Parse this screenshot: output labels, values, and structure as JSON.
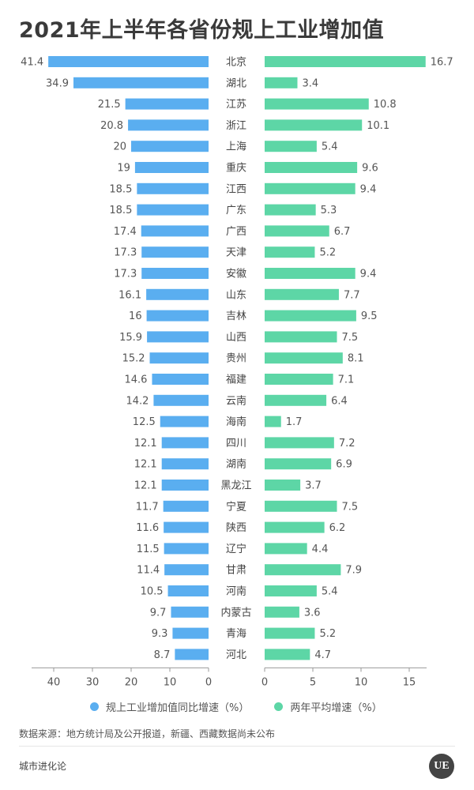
{
  "title": "2021年上半年各省份规上工业增加值",
  "chart_data": {
    "type": "bar",
    "orientation": "horizontal-butterfly",
    "categories": [
      "北京",
      "湖北",
      "江苏",
      "浙江",
      "上海",
      "重庆",
      "江西",
      "广东",
      "广西",
      "天津",
      "安徽",
      "山东",
      "吉林",
      "山西",
      "贵州",
      "福建",
      "云南",
      "海南",
      "四川",
      "湖南",
      "黑龙江",
      "宁夏",
      "陕西",
      "辽宁",
      "甘肃",
      "河南",
      "内蒙古",
      "青海",
      "河北"
    ],
    "series": [
      {
        "name": "规上工业增加值同比增速（%）",
        "color": "#5aaef0",
        "values": [
          41.4,
          34.9,
          21.5,
          20.8,
          20,
          19,
          18.5,
          18.5,
          17.4,
          17.3,
          17.3,
          16.1,
          16,
          15.9,
          15.2,
          14.6,
          14.2,
          12.5,
          12.1,
          12.1,
          12.1,
          11.7,
          11.6,
          11.5,
          11.4,
          10.5,
          9.7,
          9.3,
          8.7
        ],
        "labels": [
          "41.4",
          "34.9",
          "21.5",
          "20.8",
          "20",
          "19",
          "18.5",
          "18.5",
          "17.4",
          "17.3",
          "17.3",
          "16.1",
          "16",
          "15.9",
          "15.2",
          "14.6",
          "14.2",
          "12.5",
          "12.1",
          "12.1",
          "12.1",
          "11.7",
          "11.6",
          "11.5",
          "11.4",
          "10.5",
          "9.7",
          "9.3",
          "8.7"
        ],
        "axis_ticks": [
          "40",
          "30",
          "20",
          "10",
          "0"
        ],
        "xlim": [
          0,
          42
        ]
      },
      {
        "name": "两年平均增速（%）",
        "color": "#5dd6a6",
        "values": [
          16.7,
          3.4,
          10.8,
          10.1,
          5.4,
          9.6,
          9.4,
          5.3,
          6.7,
          5.2,
          9.4,
          7.7,
          9.5,
          7.5,
          8.1,
          7.1,
          6.4,
          1.7,
          7.2,
          6.9,
          3.7,
          7.5,
          6.2,
          4.4,
          7.9,
          5.4,
          3.6,
          5.2,
          4.7
        ],
        "labels": [
          "16.7",
          "3.4",
          "10.8",
          "10.1",
          "5.4",
          "9.6",
          "9.4",
          "5.3",
          "6.7",
          "5.2",
          "9.4",
          "7.7",
          "9.5",
          "7.5",
          "8.1",
          "7.1",
          "6.4",
          "1.7",
          "7.2",
          "6.9",
          "3.7",
          "7.5",
          "6.2",
          "4.4",
          "7.9",
          "5.4",
          "3.6",
          "5.2",
          "4.7"
        ],
        "axis_ticks": [
          "0",
          "5",
          "10",
          "15"
        ],
        "xlim": [
          0,
          17
        ]
      }
    ],
    "grid": false,
    "legend_position": "bottom"
  },
  "source_note": "数据来源：地方统计局及公开报道，新疆、西藏数据尚未公布",
  "footer_brand": "城市进化论",
  "logo_text": "UE"
}
